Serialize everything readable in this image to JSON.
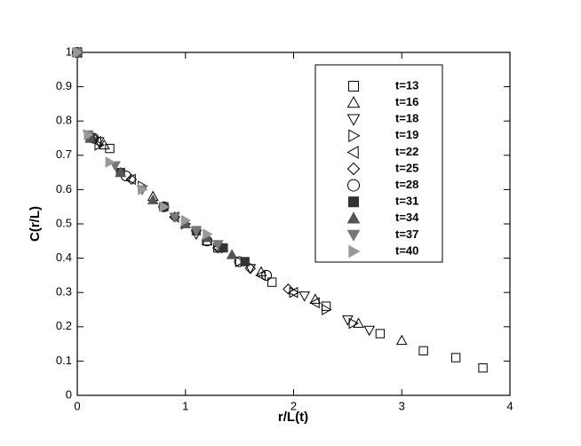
{
  "chart_data": {
    "type": "scatter",
    "xlabel": "r/L(t)",
    "ylabel": "C(r/L)",
    "xlim": [
      0,
      4
    ],
    "ylim": [
      0,
      1
    ],
    "xticks": [
      0,
      1,
      2,
      3,
      4
    ],
    "yticks": [
      0,
      0.1,
      0.2,
      0.3,
      0.4,
      0.5,
      0.6,
      0.7,
      0.8,
      0.9,
      1
    ],
    "grid": false,
    "legend": "upper right",
    "series": [
      {
        "name": "t=13",
        "color": "#000000",
        "marker": "square",
        "filled": false,
        "x": [
          0,
          0.3,
          0.8,
          1.3,
          1.8,
          2.3,
          2.8,
          3.2,
          3.5,
          3.75
        ],
        "values": [
          1,
          0.72,
          0.55,
          0.43,
          0.33,
          0.26,
          0.18,
          0.13,
          0.11,
          0.08
        ]
      },
      {
        "name": "t=16",
        "color": "#000000",
        "marker": "triangle-up",
        "filled": false,
        "x": [
          0,
          0.25,
          0.7,
          1.2,
          1.7,
          2.2,
          2.6,
          3.0
        ],
        "values": [
          1,
          0.73,
          0.58,
          0.45,
          0.36,
          0.28,
          0.21,
          0.16
        ]
      },
      {
        "name": "t=18",
        "color": "#000000",
        "marker": "triangle-down",
        "filled": false,
        "x": [
          0,
          0.2,
          0.6,
          1.1,
          1.6,
          2.1,
          2.5,
          2.7
        ],
        "values": [
          1,
          0.74,
          0.6,
          0.47,
          0.37,
          0.29,
          0.22,
          0.19
        ]
      },
      {
        "name": "t=19",
        "color": "#000000",
        "marker": "triangle-right",
        "filled": false,
        "x": [
          0,
          0.2,
          0.6,
          1.0,
          1.5,
          2.0,
          2.3,
          2.55
        ],
        "values": [
          1,
          0.73,
          0.61,
          0.5,
          0.39,
          0.3,
          0.25,
          0.21
        ]
      },
      {
        "name": "t=22",
        "color": "#000000",
        "marker": "triangle-left",
        "filled": false,
        "x": [
          0,
          0.18,
          0.5,
          0.9,
          1.3,
          1.7,
          2.0,
          2.2
        ],
        "values": [
          1,
          0.74,
          0.63,
          0.52,
          0.43,
          0.35,
          0.3,
          0.27
        ]
      },
      {
        "name": "t=25",
        "color": "#000000",
        "marker": "diamond",
        "filled": false,
        "x": [
          0,
          0.15,
          0.5,
          0.9,
          1.3,
          1.6,
          1.95
        ],
        "values": [
          1,
          0.75,
          0.63,
          0.52,
          0.43,
          0.37,
          0.31
        ]
      },
      {
        "name": "t=28",
        "color": "#000000",
        "marker": "circle",
        "filled": false,
        "x": [
          0,
          0.15,
          0.45,
          0.8,
          1.2,
          1.5,
          1.75
        ],
        "values": [
          1,
          0.75,
          0.64,
          0.55,
          0.45,
          0.39,
          0.35
        ]
      },
      {
        "name": "t=31",
        "color": "#333333",
        "marker": "square",
        "filled": true,
        "x": [
          0,
          0.12,
          0.4,
          0.8,
          1.1,
          1.35,
          1.55
        ],
        "values": [
          1,
          0.75,
          0.65,
          0.55,
          0.48,
          0.43,
          0.39
        ]
      },
      {
        "name": "t=34",
        "color": "#555555",
        "marker": "triangle-up",
        "filled": true,
        "x": [
          0,
          0.12,
          0.4,
          0.7,
          1.0,
          1.2,
          1.43
        ],
        "values": [
          1,
          0.75,
          0.65,
          0.57,
          0.5,
          0.46,
          0.41
        ]
      },
      {
        "name": "t=37",
        "color": "#777777",
        "marker": "triangle-down",
        "filled": true,
        "x": [
          0,
          0.1,
          0.35,
          0.6,
          0.9,
          1.1,
          1.3
        ],
        "values": [
          1,
          0.76,
          0.67,
          0.6,
          0.52,
          0.48,
          0.44
        ]
      },
      {
        "name": "t=40",
        "color": "#999999",
        "marker": "triangle-right",
        "filled": true,
        "x": [
          0,
          0.1,
          0.3,
          0.6,
          0.8,
          1.0,
          1.2
        ],
        "values": [
          1,
          0.76,
          0.68,
          0.6,
          0.55,
          0.51,
          0.47
        ]
      }
    ]
  }
}
